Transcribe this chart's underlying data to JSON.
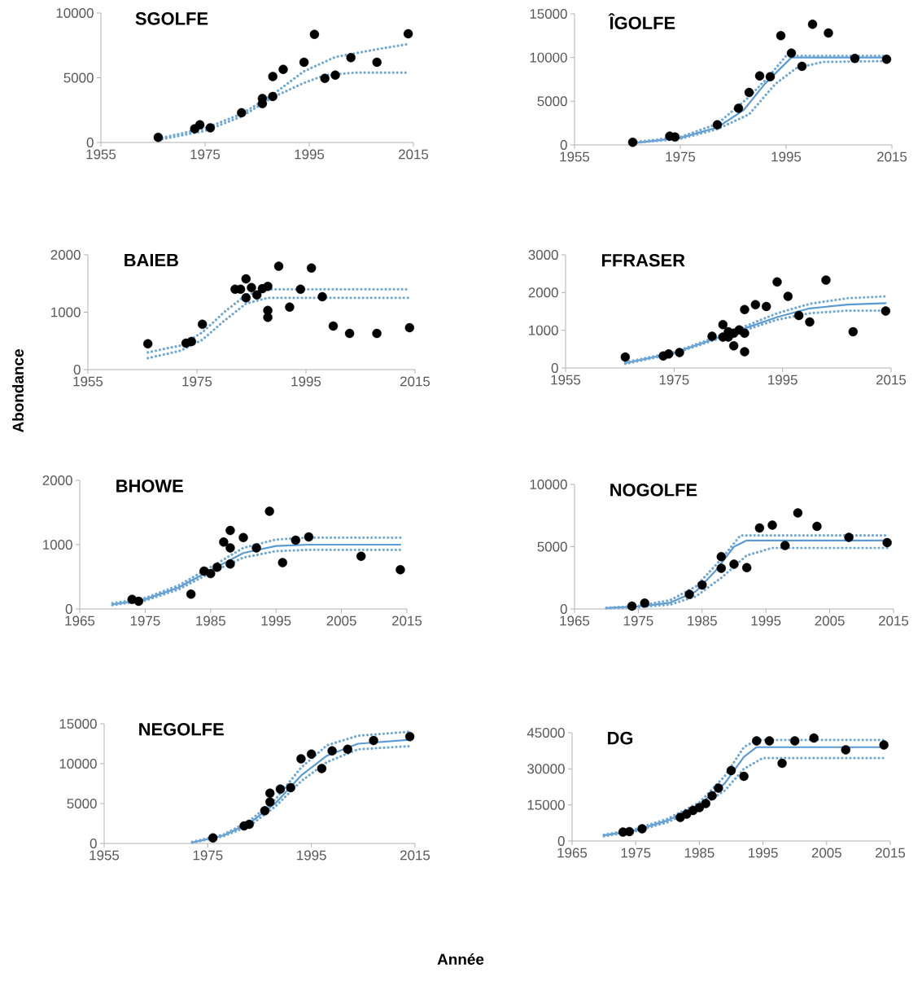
{
  "chart_data": [
    {
      "type": "scatter",
      "title": "SGOLFE",
      "xlim": [
        1955,
        2015
      ],
      "xticks": [
        1955,
        1975,
        1995,
        2015
      ],
      "ylim": [
        0,
        10000
      ],
      "yticks": [
        0,
        5000,
        10000
      ],
      "series": [
        {
          "color": "#000000",
          "marker": "circle",
          "x": [
            1966,
            1973,
            1974,
            1976,
            1982,
            1986,
            1986,
            1988,
            1988,
            1990,
            1994,
            1996,
            1998,
            2000,
            2003,
            2008,
            2014
          ],
          "values": [
            400,
            1060,
            1360,
            1130,
            2300,
            3400,
            3000,
            5100,
            3550,
            5650,
            6200,
            8350,
            4950,
            5200,
            6550,
            6200,
            8400
          ]
        },
        {
          "type": "line",
          "color": "#6fa8d6",
          "line_style": "dotted",
          "x": [
            1966,
            1975,
            1982,
            1988,
            1994,
            2000,
            2008,
            2014
          ],
          "values": [
            300,
            1100,
            2200,
            3700,
            5500,
            6600,
            7200,
            7600
          ]
        },
        {
          "type": "line",
          "color": "#6fa8d6",
          "line_style": "dotted",
          "x": [
            1966,
            1975,
            1982,
            1988,
            1994,
            1998,
            2004,
            2014
          ],
          "values": [
            200,
            900,
            2000,
            3500,
            4600,
            5200,
            5400,
            5400
          ]
        }
      ]
    },
    {
      "type": "scatter",
      "title": "ÎGOLFE",
      "xlim": [
        1955,
        2015
      ],
      "xticks": [
        1955,
        1975,
        1995,
        2015
      ],
      "ylim": [
        0,
        15000
      ],
      "yticks": [
        0,
        5000,
        10000,
        15000
      ],
      "series": [
        {
          "color": "#000000",
          "marker": "circle",
          "x": [
            1966,
            1973,
            1974,
            1982,
            1986,
            1988,
            1990,
            1992,
            1994,
            1996,
            1998,
            2000,
            2003,
            2008,
            2014
          ],
          "values": [
            300,
            1000,
            900,
            2300,
            4200,
            6000,
            7900,
            7800,
            12500,
            10500,
            9000,
            13800,
            12800,
            9900,
            9800
          ]
        },
        {
          "type": "line",
          "color": "#5b9bd5",
          "line_style": "solid",
          "x": [
            1966,
            1975,
            1982,
            1987,
            1991,
            1996,
            2014
          ],
          "values": [
            200,
            800,
            2000,
            4000,
            7000,
            10000,
            10000
          ]
        },
        {
          "type": "line",
          "color": "#6fa8d6",
          "line_style": "dotted",
          "x": [
            1966,
            1975,
            1982,
            1988,
            1992,
            1995,
            2014
          ],
          "values": [
            300,
            900,
            2400,
            5500,
            8000,
            10200,
            10200
          ]
        },
        {
          "type": "line",
          "color": "#6fa8d6",
          "line_style": "dotted",
          "x": [
            1966,
            1975,
            1982,
            1988,
            1993,
            1997,
            2002,
            2014
          ],
          "values": [
            200,
            700,
            1800,
            3500,
            7000,
            8800,
            9500,
            9600
          ]
        }
      ]
    },
    {
      "type": "scatter",
      "title": "BAIEB",
      "ylabel": "Abondance",
      "xlim": [
        1955,
        2015
      ],
      "xticks": [
        1955,
        1975,
        1995,
        2015
      ],
      "ylim": [
        0,
        2000
      ],
      "yticks": [
        0,
        1000,
        2000
      ],
      "series": [
        {
          "color": "#000000",
          "marker": "circle",
          "x": [
            1966,
            1973,
            1974,
            1976,
            1982,
            1983,
            1984,
            1984,
            1985,
            1986,
            1987,
            1988,
            1988,
            1988,
            1990,
            1992,
            1994,
            1996,
            1998,
            2000,
            2003,
            2008,
            2014
          ],
          "values": [
            450,
            460,
            490,
            790,
            1400,
            1400,
            1580,
            1250,
            1430,
            1300,
            1410,
            1450,
            1030,
            910,
            1800,
            1090,
            1400,
            1770,
            1270,
            760,
            630,
            630,
            730
          ]
        },
        {
          "type": "line",
          "color": "#6fa8d6",
          "line_style": "dotted",
          "x": [
            1966,
            1972,
            1976,
            1980,
            1984,
            1988,
            2014
          ],
          "values": [
            300,
            420,
            650,
            1000,
            1300,
            1400,
            1400
          ]
        },
        {
          "type": "line",
          "color": "#6fa8d6",
          "line_style": "dotted",
          "x": [
            1966,
            1972,
            1976,
            1980,
            1984,
            1988,
            2014
          ],
          "values": [
            200,
            330,
            520,
            850,
            1150,
            1250,
            1250
          ]
        }
      ]
    },
    {
      "type": "scatter",
      "title": "FFRASER",
      "xlim": [
        1955,
        2015
      ],
      "xticks": [
        1955,
        1975,
        1995,
        2015
      ],
      "ylim": [
        0,
        3000
      ],
      "yticks": [
        0,
        1000,
        2000,
        3000
      ],
      "series": [
        {
          "color": "#000000",
          "marker": "circle",
          "x": [
            1966,
            1973,
            1974,
            1976,
            1982,
            1984,
            1984,
            1985,
            1985,
            1986,
            1986,
            1987,
            1988,
            1988,
            1988,
            1990,
            1992,
            1994,
            1996,
            1998,
            2000,
            2003,
            2008,
            2014
          ],
          "values": [
            290,
            320,
            370,
            410,
            840,
            1150,
            820,
            960,
            820,
            590,
            920,
            1010,
            920,
            1550,
            430,
            1680,
            1630,
            2280,
            1900,
            1390,
            1220,
            2330,
            960,
            1510
          ]
        },
        {
          "type": "line",
          "color": "#5b9bd5",
          "line_style": "solid",
          "x": [
            1966,
            1975,
            1982,
            1988,
            1994,
            2000,
            2007,
            2014
          ],
          "values": [
            130,
            400,
            750,
            1050,
            1350,
            1580,
            1680,
            1720
          ]
        },
        {
          "type": "line",
          "color": "#6fa8d6",
          "line_style": "dotted",
          "x": [
            1966,
            1975,
            1982,
            1988,
            1994,
            2000,
            2007,
            2014
          ],
          "values": [
            150,
            420,
            780,
            1100,
            1450,
            1700,
            1850,
            1900
          ]
        },
        {
          "type": "line",
          "color": "#6fa8d6",
          "line_style": "dotted",
          "x": [
            1966,
            1975,
            1982,
            1988,
            1994,
            2000,
            2007,
            2014
          ],
          "values": [
            110,
            380,
            720,
            1000,
            1280,
            1450,
            1520,
            1520
          ]
        }
      ]
    },
    {
      "type": "scatter",
      "title": "BHOWE",
      "xlim": [
        1965,
        2015
      ],
      "xticks": [
        1965,
        1975,
        1985,
        1995,
        2005,
        2015
      ],
      "ylim": [
        0,
        2000
      ],
      "yticks": [
        0,
        1000,
        2000
      ],
      "series": [
        {
          "color": "#000000",
          "marker": "circle",
          "x": [
            1973,
            1974,
            1982,
            1984,
            1985,
            1986,
            1987,
            1988,
            1988,
            1988,
            1990,
            1992,
            1994,
            1996,
            1998,
            2000,
            2008,
            2014
          ],
          "values": [
            150,
            120,
            230,
            590,
            550,
            650,
            1040,
            1220,
            950,
            700,
            1110,
            950,
            1520,
            720,
            1070,
            1120,
            820,
            610
          ]
        },
        {
          "type": "line",
          "color": "#5b9bd5",
          "line_style": "solid",
          "x": [
            1970,
            1975,
            1980,
            1985,
            1990,
            1995,
            2000,
            2014
          ],
          "values": [
            70,
            150,
            330,
            600,
            870,
            980,
            1000,
            1000
          ]
        },
        {
          "type": "line",
          "color": "#6fa8d6",
          "line_style": "dotted",
          "x": [
            1970,
            1975,
            1980,
            1985,
            1990,
            1995,
            2000,
            2014
          ],
          "values": [
            90,
            170,
            360,
            650,
            950,
            1080,
            1110,
            1110
          ]
        },
        {
          "type": "line",
          "color": "#6fa8d6",
          "line_style": "dotted",
          "x": [
            1970,
            1975,
            1980,
            1985,
            1990,
            1995,
            2000,
            2014
          ],
          "values": [
            60,
            130,
            300,
            560,
            800,
            900,
            920,
            920
          ]
        }
      ]
    },
    {
      "type": "scatter",
      "title": "NOGOLFE",
      "xlim": [
        1965,
        2015
      ],
      "xticks": [
        1965,
        1975,
        1985,
        1995,
        2005,
        2015
      ],
      "ylim": [
        0,
        10000
      ],
      "yticks": [
        0,
        5000,
        10000
      ],
      "series": [
        {
          "color": "#000000",
          "marker": "circle",
          "x": [
            1974,
            1976,
            1983,
            1985,
            1988,
            1988,
            1990,
            1992,
            1994,
            1996,
            1998,
            2000,
            2003,
            2008,
            2014
          ],
          "values": [
            230,
            470,
            1170,
            1920,
            4200,
            3270,
            3600,
            3320,
            6500,
            6730,
            5090,
            7710,
            6640,
            5750,
            5330
          ]
        },
        {
          "type": "line",
          "color": "#5b9bd5",
          "line_style": "solid",
          "x": [
            1970,
            1975,
            1980,
            1984,
            1987,
            1990,
            1992,
            2014
          ],
          "values": [
            80,
            200,
            500,
            1400,
            3000,
            5000,
            5500,
            5500
          ]
        },
        {
          "type": "line",
          "color": "#6fa8d6",
          "line_style": "dotted",
          "x": [
            1970,
            1975,
            1980,
            1984,
            1988,
            1991,
            2014
          ],
          "values": [
            100,
            250,
            700,
            1800,
            4000,
            5900,
            5900
          ]
        },
        {
          "type": "line",
          "color": "#6fa8d6",
          "line_style": "dotted",
          "x": [
            1970,
            1975,
            1980,
            1984,
            1988,
            1992,
            1996,
            2014
          ],
          "values": [
            60,
            150,
            350,
            1000,
            2500,
            4300,
            4900,
            4900
          ]
        }
      ]
    },
    {
      "type": "scatter",
      "title": "NEGOLFE",
      "xlabel": "Année",
      "xlim": [
        1955,
        2015
      ],
      "xticks": [
        1955,
        1975,
        1995,
        2015
      ],
      "ylim": [
        0,
        15000
      ],
      "yticks": [
        0,
        5000,
        10000,
        15000
      ],
      "series": [
        {
          "color": "#000000",
          "marker": "circle",
          "x": [
            1976,
            1982,
            1983,
            1986,
            1987,
            1987,
            1989,
            1991,
            1993,
            1995,
            1997,
            1999,
            2002,
            2007,
            2014
          ],
          "values": [
            700,
            2200,
            2400,
            4100,
            5200,
            6300,
            6800,
            7000,
            10600,
            11200,
            9400,
            11600,
            11800,
            12900,
            13400
          ]
        },
        {
          "type": "line",
          "color": "#5b9bd5",
          "line_style": "solid",
          "x": [
            1972,
            1978,
            1983,
            1988,
            1993,
            1998,
            2004,
            2014
          ],
          "values": [
            100,
            1000,
            2500,
            5000,
            8500,
            11000,
            12500,
            13000
          ]
        },
        {
          "type": "line",
          "color": "#6fa8d6",
          "line_style": "dotted",
          "x": [
            1972,
            1978,
            1983,
            1988,
            1993,
            1998,
            2004,
            2014
          ],
          "values": [
            200,
            1100,
            2800,
            5500,
            9500,
            12300,
            13500,
            14000
          ]
        },
        {
          "type": "line",
          "color": "#6fa8d6",
          "line_style": "dotted",
          "x": [
            1972,
            1978,
            1983,
            1988,
            1993,
            1998,
            2004,
            2014
          ],
          "values": [
            100,
            900,
            2200,
            4600,
            7800,
            10200,
            11800,
            12200
          ]
        }
      ]
    },
    {
      "type": "scatter",
      "title": "DG",
      "xlim": [
        1965,
        2015
      ],
      "xticks": [
        1965,
        1975,
        1985,
        1995,
        2005,
        2015
      ],
      "ylim": [
        0,
        45000
      ],
      "yticks": [
        0,
        15000,
        30000,
        45000
      ],
      "series": [
        {
          "color": "#000000",
          "marker": "circle",
          "x": [
            1973,
            1974,
            1976,
            1982,
            1983,
            1984,
            1985,
            1986,
            1987,
            1988,
            1990,
            1992,
            1994,
            1996,
            1998,
            2000,
            2003,
            2008,
            2014
          ],
          "values": [
            3700,
            3900,
            5100,
            9800,
            11200,
            12700,
            13900,
            15600,
            18800,
            22000,
            29300,
            26900,
            41600,
            41600,
            32300,
            41600,
            42800,
            37900,
            39900
          ]
        },
        {
          "type": "line",
          "color": "#5b9bd5",
          "line_style": "solid",
          "x": [
            1970,
            1975,
            1980,
            1985,
            1989,
            1992,
            1994,
            2014
          ],
          "values": [
            2300,
            4500,
            8500,
            15000,
            24000,
            35000,
            39000,
            39000
          ]
        },
        {
          "type": "line",
          "color": "#6fa8d6",
          "line_style": "dotted",
          "x": [
            1970,
            1975,
            1980,
            1985,
            1989,
            1992,
            1994,
            2014
          ],
          "values": [
            2600,
            5000,
            9200,
            16000,
            27000,
            39000,
            42000,
            42000
          ]
        },
        {
          "type": "line",
          "color": "#6fa8d6",
          "line_style": "dotted",
          "x": [
            1970,
            1975,
            1980,
            1985,
            1989,
            1992,
            1995,
            2014
          ],
          "values": [
            2000,
            4100,
            7800,
            14000,
            21000,
            30000,
            34500,
            34500
          ]
        }
      ]
    }
  ]
}
